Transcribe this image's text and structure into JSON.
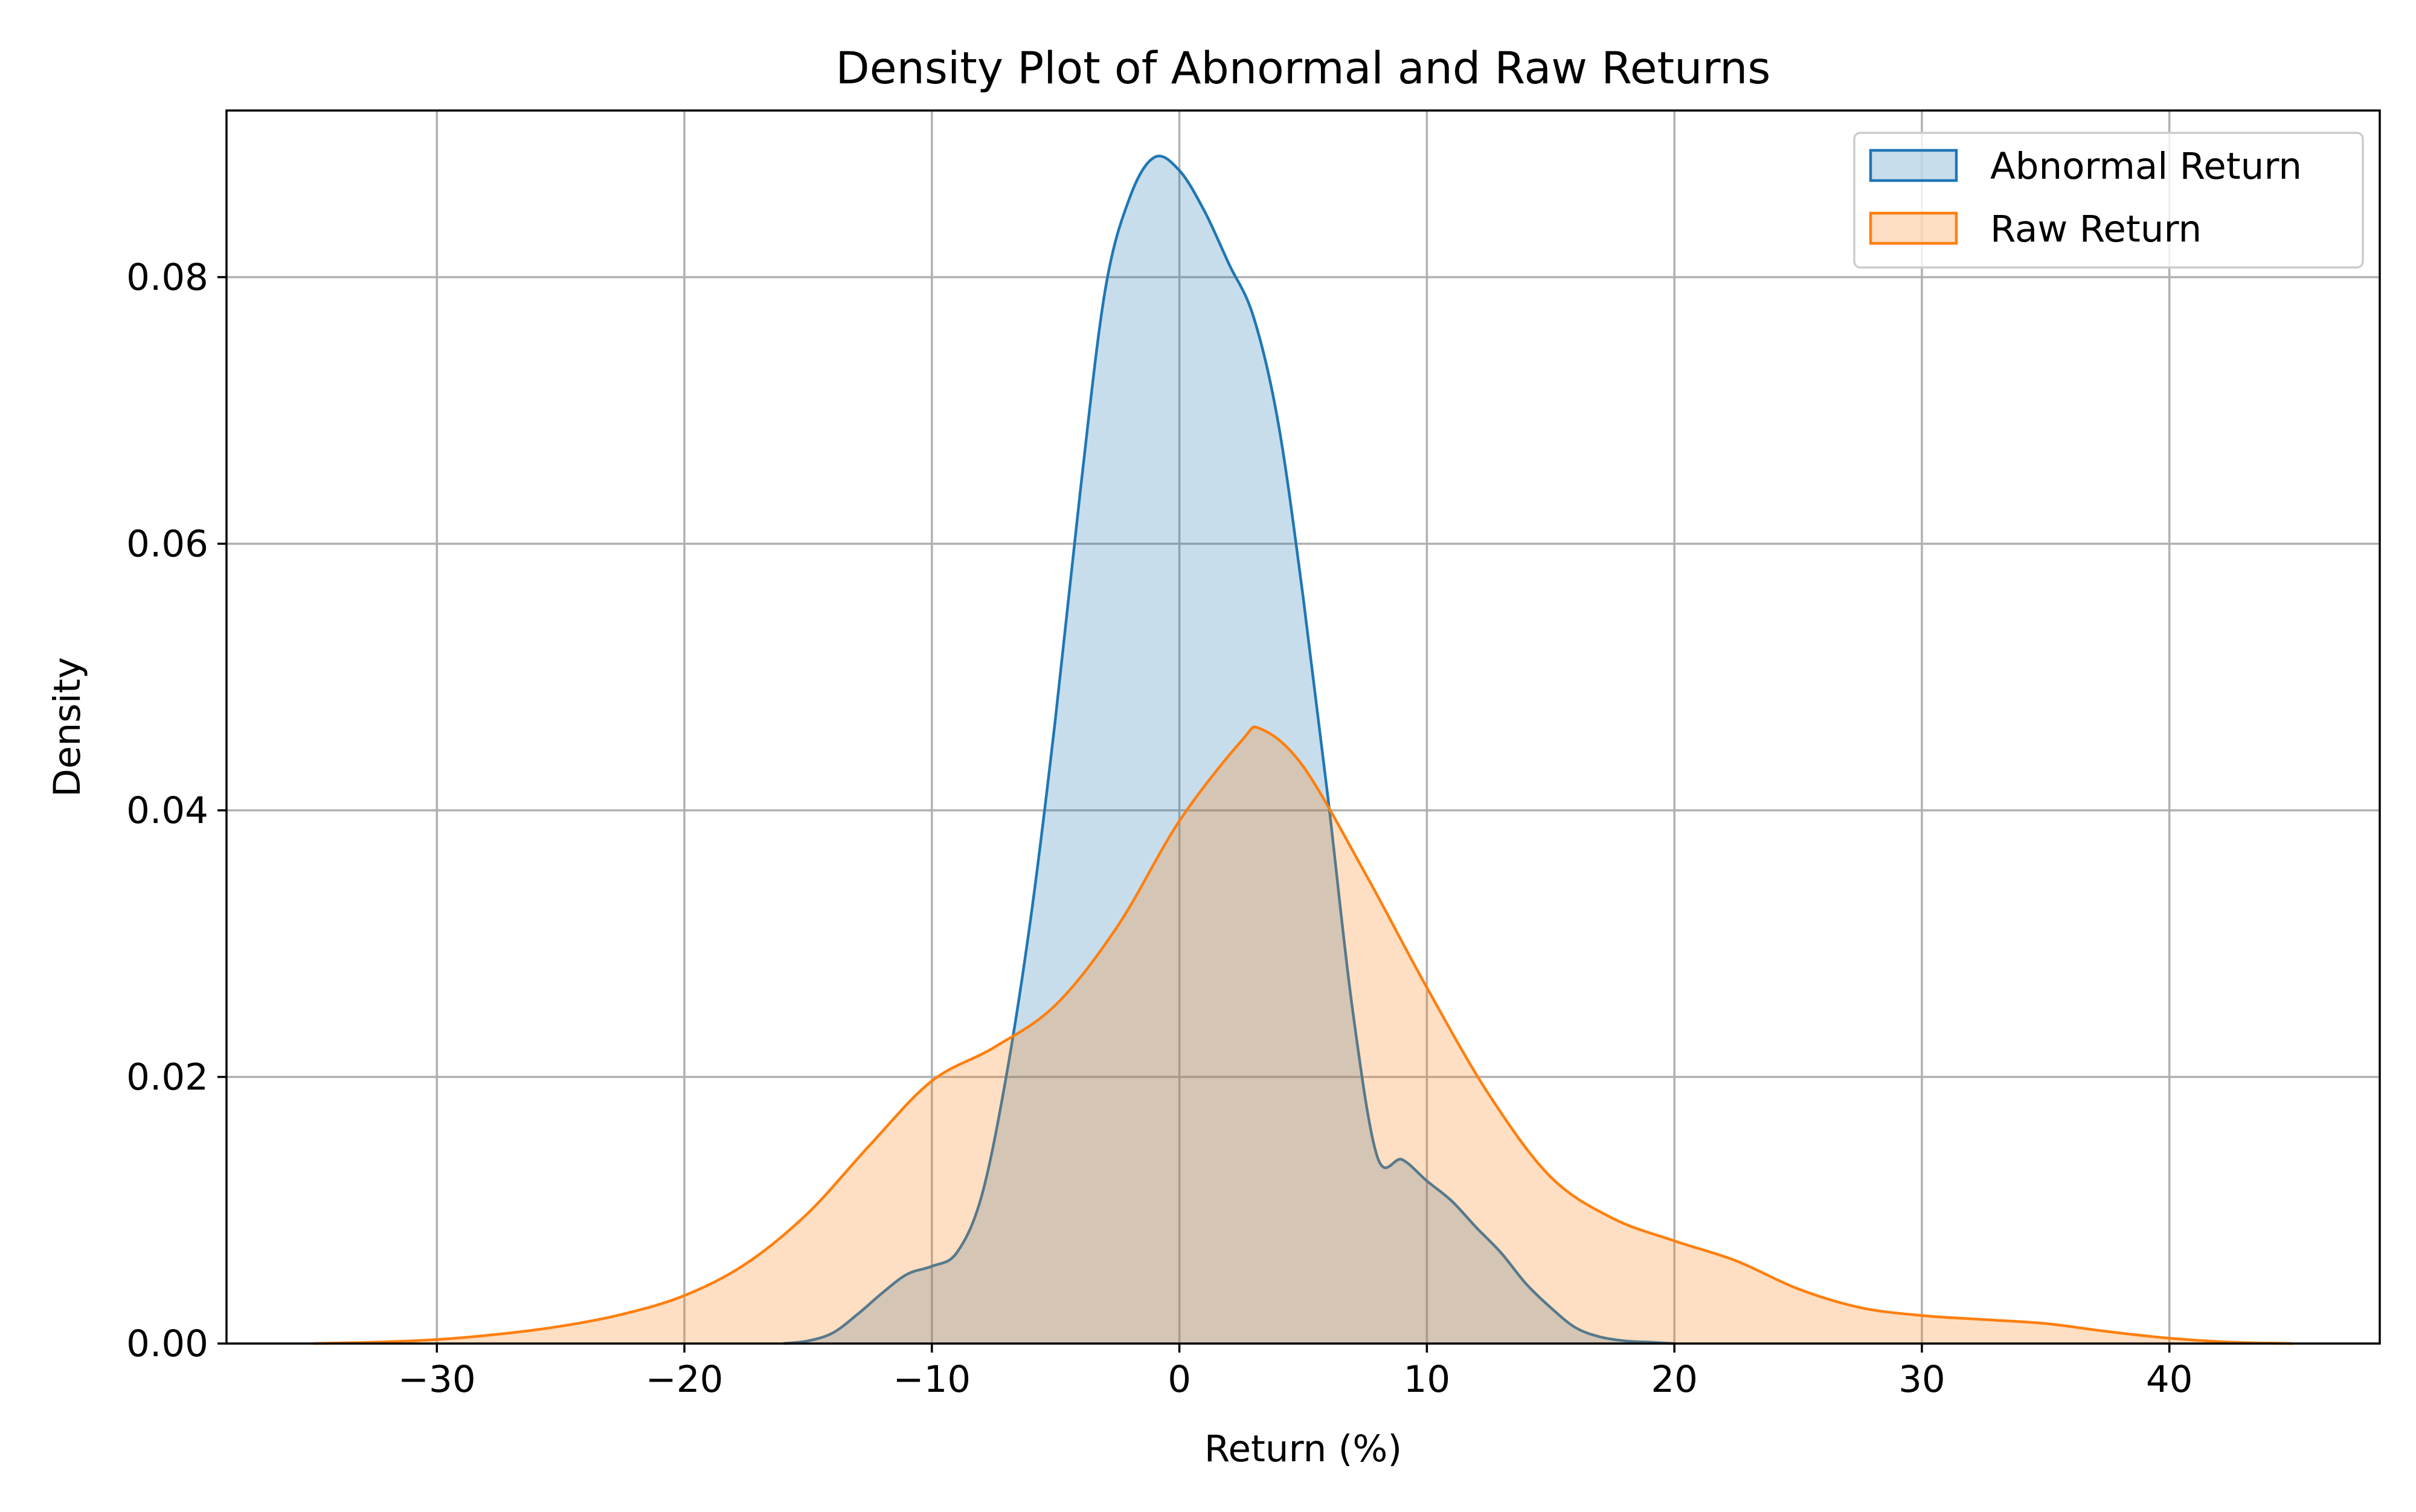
{
  "chart_data": {
    "type": "area",
    "title": "Density Plot of Abnormal and Raw Returns",
    "xlabel": "Return (%)",
    "ylabel": "Density",
    "xlim": [
      -38.5,
      48.5
    ],
    "ylim": [
      0,
      0.0925
    ],
    "xticks": [
      -30,
      -20,
      -10,
      0,
      10,
      20,
      30,
      40
    ],
    "xtick_labels": [
      "−30",
      "−20",
      "−10",
      "0",
      "10",
      "20",
      "30",
      "40"
    ],
    "yticks": [
      0,
      0.02,
      0.04,
      0.06,
      0.08
    ],
    "ytick_labels": [
      "0.00",
      "0.02",
      "0.04",
      "0.06",
      "0.08"
    ],
    "grid": true,
    "legend_position": "top-right",
    "series": [
      {
        "name": "Abnormal Return",
        "color": "#1f77b4",
        "fill_opacity": 0.25,
        "x": [
          -16,
          -15,
          -14,
          -13,
          -12,
          -11,
          -10,
          -9,
          -8,
          -7,
          -6,
          -5,
          -4,
          -3,
          -2,
          -1,
          0,
          1,
          2,
          3,
          4,
          5,
          6,
          7,
          8,
          9,
          10,
          11,
          12,
          13,
          14,
          15,
          16,
          17,
          18,
          19,
          20
        ],
        "y": [
          0.0,
          0.0002,
          0.0008,
          0.0022,
          0.0038,
          0.0052,
          0.0058,
          0.0068,
          0.011,
          0.02,
          0.032,
          0.047,
          0.064,
          0.079,
          0.086,
          0.089,
          0.088,
          0.085,
          0.081,
          0.077,
          0.069,
          0.056,
          0.041,
          0.025,
          0.014,
          0.0138,
          0.0122,
          0.0107,
          0.0087,
          0.0068,
          0.0045,
          0.0027,
          0.0012,
          0.0005,
          0.0002,
          0.0001,
          0.0
        ]
      },
      {
        "name": "Raw Return",
        "color": "#ff7f0e",
        "fill_opacity": 0.25,
        "x": [
          -35,
          -32.5,
          -30,
          -27.5,
          -25,
          -22.5,
          -20,
          -17.5,
          -15,
          -12.5,
          -10,
          -7.5,
          -5,
          -2.5,
          0,
          2.5,
          3.3,
          5,
          7.5,
          10,
          12.5,
          15,
          17.5,
          20,
          22.5,
          25,
          27.5,
          30,
          32.5,
          35,
          37.5,
          40,
          42.5,
          45
        ],
        "y": [
          0.0,
          0.0001,
          0.0003,
          0.0007,
          0.0013,
          0.0022,
          0.0036,
          0.006,
          0.0098,
          0.0149,
          0.0197,
          0.0222,
          0.0254,
          0.0313,
          0.0392,
          0.0452,
          0.0461,
          0.0433,
          0.0353,
          0.0267,
          0.0187,
          0.0125,
          0.0094,
          0.0077,
          0.0062,
          0.0041,
          0.0027,
          0.0021,
          0.0018,
          0.0015,
          0.0009,
          0.0004,
          0.0001,
          0.0
        ]
      }
    ]
  }
}
